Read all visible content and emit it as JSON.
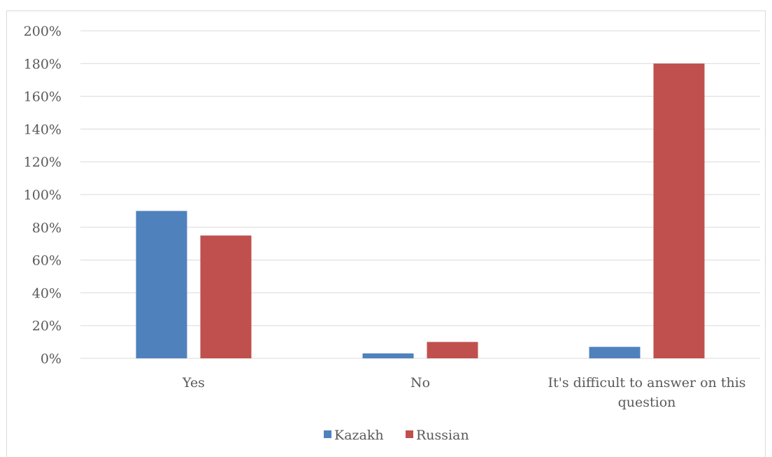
{
  "chart_data": {
    "type": "bar",
    "categories": [
      "Yes",
      "No",
      "It's difficult to answer on this question"
    ],
    "category_lines": [
      [
        "Yes"
      ],
      [
        "No"
      ],
      [
        "It's difficult to answer on this",
        "question"
      ]
    ],
    "series": [
      {
        "name": "Kazakh",
        "color": "#4f81bd",
        "values": [
          90,
          3,
          7
        ]
      },
      {
        "name": "Russian",
        "color": "#c0504d",
        "values": [
          75,
          10,
          180
        ]
      }
    ],
    "y_ticks": [
      "0%",
      "20%",
      "40%",
      "60%",
      "80%",
      "100%",
      "120%",
      "140%",
      "160%",
      "180%",
      "200%"
    ],
    "ylim": [
      0,
      200
    ],
    "grid": true,
    "legend_position": "bottom",
    "title": "",
    "xlabel": "",
    "ylabel": ""
  }
}
